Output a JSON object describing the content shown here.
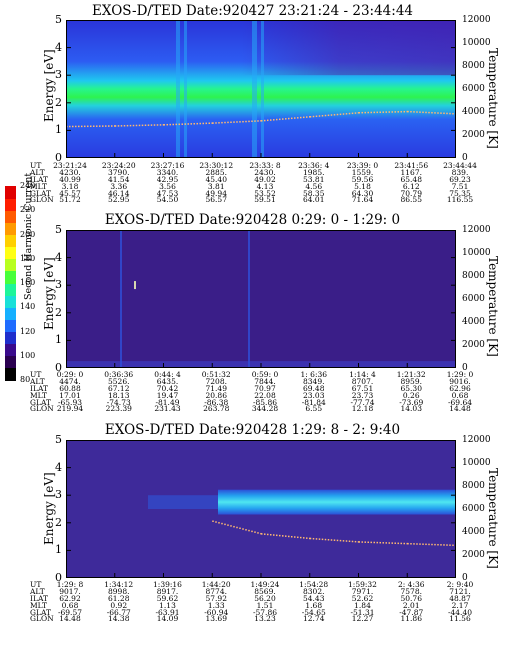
{
  "panels": [
    {
      "title": "EXOS-D/TED   Date:920427  23:21:24 - 23:44:44",
      "ylabel": "Energy [eV]",
      "rlabel": "Temperature [K]",
      "ephem": {
        "UT": [
          "23:21:24",
          "23:24:20",
          "23:27:16",
          "23:30:12",
          "23:33: 8",
          "23:36: 4",
          "23:39: 0",
          "23:41:56",
          "23:44:44"
        ],
        "ALT": [
          "4230.",
          "3790.",
          "3340.",
          "2885.",
          "2430.",
          "1985.",
          "1559.",
          "1167.",
          "839."
        ],
        "ILAT": [
          "40.99",
          "41.54",
          "42.95",
          "45.40",
          "49.02",
          "53.81",
          "59.56",
          "65.48",
          "69.23"
        ],
        "MLT": [
          "3.18",
          "3.36",
          "3.56",
          "3.81",
          "4.13",
          "4.56",
          "5.18",
          "6.12",
          "7.51"
        ],
        "GLAT": [
          "45.57",
          "46.14",
          "47.53",
          "49.94",
          "53.52",
          "58.35",
          "64.30",
          "70.79",
          "75.35"
        ],
        "GLON": [
          "51.72",
          "52.95",
          "54.50",
          "56.57",
          "59.51",
          "64.01",
          "71.64",
          "86.55",
          "116.55"
        ]
      }
    },
    {
      "title": "EXOS-D/TED   Date:920428  0:29: 0 - 1:29: 0",
      "ylabel": "Energy [eV]",
      "rlabel": "Temperature [K]",
      "ephem": {
        "UT": [
          "0:29: 0",
          "0:36:36",
          "0:44: 4",
          "0:51:32",
          "0:59: 0",
          "1: 6:36",
          "1:14: 4",
          "1:21:32",
          "1:29: 0"
        ],
        "ALT": [
          "4474.",
          "5526.",
          "6435.",
          "7208.",
          "7844.",
          "8349.",
          "8707.",
          "8959.",
          "9016."
        ],
        "ILAT": [
          "60.88",
          "67.12",
          "70.42",
          "71.49",
          "70.97",
          "69.48",
          "67.51",
          "65.30",
          "62.96"
        ],
        "MLT": [
          "17.01",
          "18.13",
          "19.47",
          "20.86",
          "22.08",
          "23.03",
          "23.73",
          "0.26",
          "0.68"
        ],
        "GLAT": [
          "-65.93",
          "-74.73",
          "-81.49",
          "-86.38",
          "-85.86",
          "-81.84",
          "-77.74",
          "-73.69",
          "-69.64"
        ],
        "GLON": [
          "219.94",
          "223.39",
          "231.43",
          "263.78",
          "344.28",
          "6.55",
          "12.18",
          "14.03",
          "14.48"
        ]
      }
    },
    {
      "title": "EXOS-D/TED   Date:920428  1:29: 8 - 2: 9:40",
      "ylabel": "Energy [eV]",
      "rlabel": "Temperature [K]",
      "ephem": {
        "UT": [
          "1:29: 8",
          "1:34:12",
          "1:39:16",
          "1:44:20",
          "1:49:24",
          "1:54:28",
          "1:59:32",
          "2: 4:36",
          "2: 9:40"
        ],
        "ALT": [
          "9017.",
          "8998.",
          "8917.",
          "8774.",
          "8569.",
          "8302.",
          "7971.",
          "7578.",
          "7121."
        ],
        "ILAT": [
          "62.92",
          "61.28",
          "59.62",
          "57.92",
          "56.20",
          "54.43",
          "52.62",
          "50.76",
          "48.87"
        ],
        "MLT": [
          "0.68",
          "0.92",
          "1.13",
          "1.33",
          "1.51",
          "1.68",
          "1.84",
          "2.01",
          "2.17"
        ],
        "GLAT": [
          "-69.57",
          "-66.77",
          "-63.91",
          "-60.94",
          "-57.86",
          "-54.65",
          "-51.31",
          "-47.87",
          "-44.40"
        ],
        "GLON": [
          "14.48",
          "14.38",
          "14.09",
          "13.69",
          "13.23",
          "12.74",
          "12.27",
          "11.86",
          "11.56"
        ]
      }
    }
  ],
  "ephem_labels": [
    "UT",
    "ALT",
    "ILAT",
    "MLT",
    "GLAT",
    "GLON"
  ],
  "colorbar": {
    "label": "Second Harmonic Current",
    "ticks": [
      "240",
      "220",
      "200",
      "180",
      "160",
      "140",
      "120",
      "100",
      "80"
    ],
    "colors": [
      "#000000",
      "#2a0050",
      "#3a0a8c",
      "#1f2ecc",
      "#1f6cff",
      "#15b0ff",
      "#19e0d8",
      "#1ef59a",
      "#48ff3a",
      "#b8ff20",
      "#ffff14",
      "#ffd000",
      "#ff9a00",
      "#ff5a00",
      "#ff1e00",
      "#e00000"
    ]
  },
  "chart_data": [
    {
      "type": "heatmap",
      "title": "EXOS-D/TED   Date:920427  23:21:24 - 23:44:44",
      "ylabel": "Energy [eV]",
      "y2label": "Temperature [K]",
      "ylim": [
        0,
        5
      ],
      "yticks": [
        0,
        1,
        2,
        3,
        4,
        5
      ],
      "y2lim": [
        0,
        12000
      ],
      "y2ticks": [
        0,
        2000,
        4000,
        6000,
        8000,
        10000,
        12000
      ],
      "x": [
        "23:21:24",
        "23:24:20",
        "23:27:16",
        "23:30:12",
        "23:33: 8",
        "23:36: 4",
        "23:39: 0",
        "23:41:56",
        "23:44:44"
      ],
      "series": [
        {
          "values": [
            2800,
            2850,
            2950,
            3100,
            3300,
            3650,
            4000,
            4100,
            3900
          ]
        }
      ]
    },
    {
      "type": "heatmap",
      "title": "EXOS-D/TED   Date:920428  0:29: 0 - 1:29: 0",
      "ylabel": "Energy [eV]",
      "y2label": "Temperature [K]",
      "ylim": [
        0,
        5
      ],
      "yticks": [
        0,
        1,
        2,
        3,
        4,
        5
      ],
      "y2lim": [
        0,
        12000
      ],
      "y2ticks": [
        0,
        2000,
        4000,
        6000,
        8000,
        10000,
        12000
      ],
      "x": [
        "0:29: 0",
        "0:36:36",
        "0:44: 4",
        "0:51:32",
        "0:59: 0",
        "1: 6:36",
        "1:14: 4",
        "1:21:32",
        "1:29: 0"
      ],
      "series": []
    },
    {
      "type": "heatmap",
      "title": "EXOS-D/TED   Date:920428  1:29: 8 - 2: 9:40",
      "ylabel": "Energy [eV]",
      "y2label": "Temperature [K]",
      "ylim": [
        0,
        5
      ],
      "yticks": [
        0,
        1,
        2,
        3,
        4,
        5
      ],
      "y2lim": [
        0,
        12000
      ],
      "y2ticks": [
        0,
        2000,
        4000,
        6000,
        8000,
        10000,
        12000
      ],
      "x": [
        "1:29: 8",
        "1:34:12",
        "1:39:16",
        "1:44:20",
        "1:49:24",
        "1:54:28",
        "1:59:32",
        "2: 4:36",
        "2: 9:40"
      ],
      "series": [
        {
          "values": [
            null,
            null,
            null,
            5000,
            3900,
            3500,
            3200,
            3050,
            2900
          ]
        }
      ]
    }
  ]
}
